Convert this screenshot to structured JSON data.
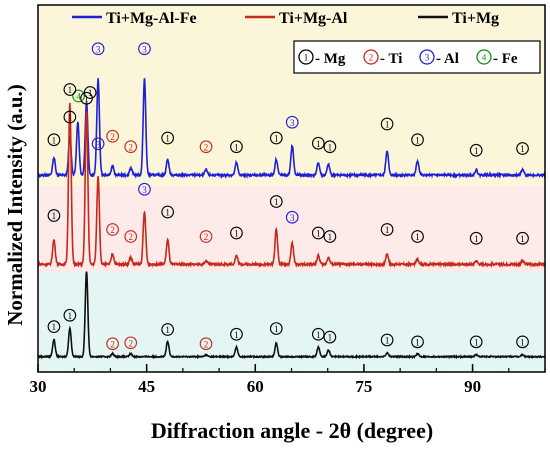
{
  "chart_data": {
    "type": "line",
    "title": "",
    "xlabel": "Diffraction angle - 2θ (degree)",
    "ylabel": "Normalized Intensity (a.u.)",
    "xlim": [
      30,
      100
    ],
    "xticks": [
      30,
      45,
      60,
      75,
      90
    ],
    "grid": false,
    "legend_position": "top",
    "background_bands": [
      {
        "series": "Ti+Mg-Al-Fe",
        "color": "#fbf6d9"
      },
      {
        "series": "Ti+Mg-Al",
        "color": "#fdebea"
      },
      {
        "series": "Ti+Mg",
        "color": "#e3f6f3"
      }
    ],
    "series": [
      {
        "name": "Ti+Mg-Al-Fe",
        "color": "#1f1fd6",
        "baseline": 0.08,
        "peaks": [
          {
            "x": 32.2,
            "h": 0.1
          },
          {
            "x": 34.4,
            "h": 0.22
          },
          {
            "x": 35.5,
            "h": 0.3
          },
          {
            "x": 36.7,
            "h": 0.42
          },
          {
            "x": 38.3,
            "h": 0.55
          },
          {
            "x": 40.3,
            "h": 0.05
          },
          {
            "x": 42.8,
            "h": 0.04
          },
          {
            "x": 44.7,
            "h": 0.55
          },
          {
            "x": 47.9,
            "h": 0.09
          },
          {
            "x": 53.2,
            "h": 0.03
          },
          {
            "x": 57.4,
            "h": 0.07
          },
          {
            "x": 62.9,
            "h": 0.09
          },
          {
            "x": 65.1,
            "h": 0.17
          },
          {
            "x": 68.7,
            "h": 0.07
          },
          {
            "x": 70.1,
            "h": 0.06
          },
          {
            "x": 78.2,
            "h": 0.14
          },
          {
            "x": 82.4,
            "h": 0.08
          },
          {
            "x": 90.5,
            "h": 0.03
          },
          {
            "x": 96.9,
            "h": 0.03
          }
        ]
      },
      {
        "name": "Ti+Mg-Al",
        "color": "#c8281c",
        "baseline": 0.06,
        "peaks": [
          {
            "x": 32.2,
            "h": 0.14
          },
          {
            "x": 34.4,
            "h": 0.92
          },
          {
            "x": 36.7,
            "h": 0.88
          },
          {
            "x": 38.3,
            "h": 0.5
          },
          {
            "x": 40.3,
            "h": 0.06
          },
          {
            "x": 42.8,
            "h": 0.04
          },
          {
            "x": 44.7,
            "h": 0.3
          },
          {
            "x": 47.9,
            "h": 0.14
          },
          {
            "x": 53.2,
            "h": 0.02
          },
          {
            "x": 57.4,
            "h": 0.05
          },
          {
            "x": 62.9,
            "h": 0.2
          },
          {
            "x": 65.1,
            "h": 0.12
          },
          {
            "x": 68.7,
            "h": 0.05
          },
          {
            "x": 70.1,
            "h": 0.04
          },
          {
            "x": 78.2,
            "h": 0.06
          },
          {
            "x": 82.4,
            "h": 0.03
          },
          {
            "x": 90.5,
            "h": 0.02
          },
          {
            "x": 96.9,
            "h": 0.02
          }
        ]
      },
      {
        "name": "Ti+Mg",
        "color": "#111111",
        "baseline": 0.04,
        "peaks": [
          {
            "x": 32.2,
            "h": 0.18
          },
          {
            "x": 34.4,
            "h": 0.3
          },
          {
            "x": 36.7,
            "h": 0.9
          },
          {
            "x": 40.3,
            "h": 0.03
          },
          {
            "x": 42.8,
            "h": 0.03
          },
          {
            "x": 47.9,
            "h": 0.16
          },
          {
            "x": 53.2,
            "h": 0.02
          },
          {
            "x": 57.4,
            "h": 0.1
          },
          {
            "x": 62.9,
            "h": 0.14
          },
          {
            "x": 68.7,
            "h": 0.1
          },
          {
            "x": 70.1,
            "h": 0.07
          },
          {
            "x": 78.2,
            "h": 0.04
          },
          {
            "x": 82.4,
            "h": 0.03
          },
          {
            "x": 90.5,
            "h": 0.02
          },
          {
            "x": 96.9,
            "h": 0.02
          }
        ]
      }
    ],
    "phase_legend": [
      {
        "symbol": "①",
        "label": "- Mg",
        "color": "#000000"
      },
      {
        "symbol": "②",
        "label": "- Ti",
        "color": "#c8281c"
      },
      {
        "symbol": "③",
        "label": "- Al",
        "color": "#1f1fd6"
      },
      {
        "symbol": "④",
        "label": "- Fe",
        "color": "#1a8a1a"
      }
    ],
    "annotations": [
      {
        "series": "Ti+Mg-Al-Fe",
        "phase": 1,
        "x": 32.2,
        "y": 0.23
      },
      {
        "series": "Ti+Mg-Al-Fe",
        "phase": 1,
        "x": 34.4,
        "y": 0.36
      },
      {
        "series": "Ti+Mg-Al-Fe",
        "phase": 4,
        "x": 35.6,
        "y": 0.48
      },
      {
        "series": "Ti+Mg-Al-Fe",
        "phase": 1,
        "x": 37.2,
        "y": 0.5
      },
      {
        "series": "Ti+Mg-Al-Fe",
        "phase": 3,
        "x": 38.3,
        "y": 0.75
      },
      {
        "series": "Ti+Mg-Al-Fe",
        "phase": 2,
        "x": 40.3,
        "y": 0.25
      },
      {
        "series": "Ti+Mg-Al-Fe",
        "phase": 2,
        "x": 42.8,
        "y": 0.19
      },
      {
        "series": "Ti+Mg-Al-Fe",
        "phase": 3,
        "x": 44.7,
        "y": 0.75
      },
      {
        "series": "Ti+Mg-Al-Fe",
        "phase": 1,
        "x": 47.9,
        "y": 0.24
      },
      {
        "series": "Ti+Mg-Al-Fe",
        "phase": 2,
        "x": 53.2,
        "y": 0.19
      },
      {
        "series": "Ti+Mg-Al-Fe",
        "phase": 1,
        "x": 57.4,
        "y": 0.19
      },
      {
        "series": "Ti+Mg-Al-Fe",
        "phase": 1,
        "x": 62.9,
        "y": 0.24
      },
      {
        "series": "Ti+Mg-Al-Fe",
        "phase": 3,
        "x": 65.1,
        "y": 0.33
      },
      {
        "series": "Ti+Mg-Al-Fe",
        "phase": 1,
        "x": 68.7,
        "y": 0.21
      },
      {
        "series": "Ti+Mg-Al-Fe",
        "phase": 1,
        "x": 70.3,
        "y": 0.19
      },
      {
        "series": "Ti+Mg-Al-Fe",
        "phase": 1,
        "x": 78.2,
        "y": 0.32
      },
      {
        "series": "Ti+Mg-Al-Fe",
        "phase": 1,
        "x": 82.4,
        "y": 0.23
      },
      {
        "series": "Ti+Mg-Al-Fe",
        "phase": 1,
        "x": 90.5,
        "y": 0.17
      },
      {
        "series": "Ti+Mg-Al-Fe",
        "phase": 1,
        "x": 96.9,
        "y": 0.18
      },
      {
        "series": "Ti+Mg-Al",
        "phase": 1,
        "x": 32.2,
        "y": 0.3
      },
      {
        "series": "Ti+Mg-Al",
        "phase": 1,
        "x": 34.4,
        "y": 1.02
      },
      {
        "series": "Ti+Mg-Al",
        "phase": 1,
        "x": 36.7,
        "y": 0.97
      },
      {
        "series": "Ti+Mg-Al",
        "phase": 3,
        "x": 38.3,
        "y": 0.71
      },
      {
        "series": "Ti+Mg-Al",
        "phase": 2,
        "x": 40.3,
        "y": 0.22
      },
      {
        "series": "Ti+Mg-Al",
        "phase": 2,
        "x": 42.8,
        "y": 0.18
      },
      {
        "series": "Ti+Mg-Al",
        "phase": 3,
        "x": 44.7,
        "y": 0.45
      },
      {
        "series": "Ti+Mg-Al",
        "phase": 1,
        "x": 47.9,
        "y": 0.32
      },
      {
        "series": "Ti+Mg-Al",
        "phase": 2,
        "x": 53.2,
        "y": 0.18
      },
      {
        "series": "Ti+Mg-Al",
        "phase": 1,
        "x": 57.4,
        "y": 0.2
      },
      {
        "series": "Ti+Mg-Al",
        "phase": 1,
        "x": 62.9,
        "y": 0.38
      },
      {
        "series": "Ti+Mg-Al",
        "phase": 3,
        "x": 65.1,
        "y": 0.29
      },
      {
        "series": "Ti+Mg-Al",
        "phase": 1,
        "x": 68.7,
        "y": 0.2
      },
      {
        "series": "Ti+Mg-Al",
        "phase": 1,
        "x": 70.3,
        "y": 0.18
      },
      {
        "series": "Ti+Mg-Al",
        "phase": 1,
        "x": 78.2,
        "y": 0.22
      },
      {
        "series": "Ti+Mg-Al",
        "phase": 1,
        "x": 82.4,
        "y": 0.18
      },
      {
        "series": "Ti+Mg-Al",
        "phase": 1,
        "x": 90.5,
        "y": 0.17
      },
      {
        "series": "Ti+Mg-Al",
        "phase": 1,
        "x": 96.9,
        "y": 0.17
      },
      {
        "series": "Ti+Mg",
        "phase": 1,
        "x": 32.2,
        "y": 0.33
      },
      {
        "series": "Ti+Mg",
        "phase": 1,
        "x": 34.4,
        "y": 0.45
      },
      {
        "series": "Ti+Mg",
        "phase": 2,
        "x": 40.3,
        "y": 0.15
      },
      {
        "series": "Ti+Mg",
        "phase": 2,
        "x": 42.8,
        "y": 0.16
      },
      {
        "series": "Ti+Mg",
        "phase": 1,
        "x": 47.9,
        "y": 0.3
      },
      {
        "series": "Ti+Mg",
        "phase": 2,
        "x": 53.2,
        "y": 0.15
      },
      {
        "series": "Ti+Mg",
        "phase": 1,
        "x": 57.4,
        "y": 0.25
      },
      {
        "series": "Ti+Mg",
        "phase": 1,
        "x": 62.9,
        "y": 0.31
      },
      {
        "series": "Ti+Mg",
        "phase": 1,
        "x": 68.7,
        "y": 0.25
      },
      {
        "series": "Ti+Mg",
        "phase": 1,
        "x": 70.3,
        "y": 0.22
      },
      {
        "series": "Ti+Mg",
        "phase": 1,
        "x": 78.2,
        "y": 0.19
      },
      {
        "series": "Ti+Mg",
        "phase": 1,
        "x": 82.4,
        "y": 0.17
      },
      {
        "series": "Ti+Mg",
        "phase": 1,
        "x": 90.5,
        "y": 0.17
      },
      {
        "series": "Ti+Mg",
        "phase": 1,
        "x": 96.9,
        "y": 0.17
      }
    ]
  }
}
